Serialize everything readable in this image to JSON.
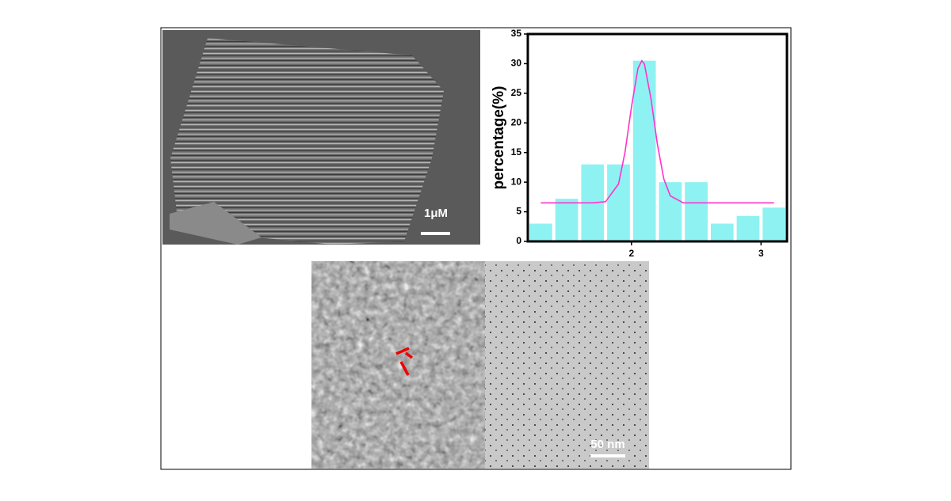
{
  "chart_data": {
    "type": "histogram",
    "ylabel": "percentage(%)",
    "bins": [
      1.2,
      1.4,
      1.6,
      1.8,
      2.0,
      2.2,
      2.4,
      2.6,
      2.8,
      3.0,
      3.2
    ],
    "values": [
      3,
      7.2,
      13,
      13,
      30.5,
      10,
      10,
      3,
      4.3,
      5.7
    ],
    "color": "#8ef2f2",
    "fit": {
      "color": "#ff33cc",
      "x": [
        1.3,
        1.5,
        1.7,
        1.8,
        1.9,
        1.95,
        2.0,
        2.05,
        2.08,
        2.1,
        2.15,
        2.2,
        2.25,
        2.3,
        2.4,
        2.6,
        2.8,
        3.1
      ],
      "values": [
        6.5,
        6.5,
        6.5,
        6.7,
        9.7,
        15.0,
        22.7,
        29.2,
        30.5,
        29.9,
        24.2,
        16.4,
        10.5,
        7.7,
        6.5,
        6.5,
        6.5,
        6.5
      ]
    },
    "xlim": [
      1.2,
      3.2
    ],
    "xticks": [
      2,
      3
    ],
    "ylim": [
      0,
      35
    ],
    "yticks": [
      0,
      5,
      10,
      15,
      20,
      25,
      30,
      35
    ]
  },
  "images": {
    "sem_scale": "1μM",
    "tem_scale": "50 nm"
  }
}
